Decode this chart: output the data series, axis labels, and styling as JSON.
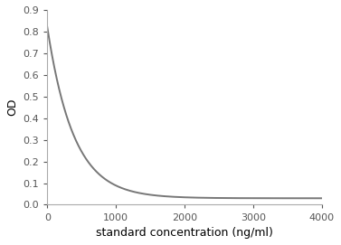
{
  "xlabel": "standard concentration (ng/ml)",
  "ylabel": "OD",
  "xlim": [
    0,
    4000
  ],
  "ylim": [
    0,
    0.9
  ],
  "xticks": [
    0,
    1000,
    2000,
    3000,
    4000
  ],
  "yticks": [
    0,
    0.1,
    0.2,
    0.3,
    0.4,
    0.5,
    0.6,
    0.7,
    0.8,
    0.9
  ],
  "line_color": "#777777",
  "line_width": 1.4,
  "background_color": "#ffffff",
  "curve_A": 0.79,
  "curve_k": 0.0026,
  "curve_C": 0.03,
  "xlabel_fontsize": 9,
  "ylabel_fontsize": 9,
  "tick_fontsize": 8,
  "spine_color": "#aaaaaa"
}
